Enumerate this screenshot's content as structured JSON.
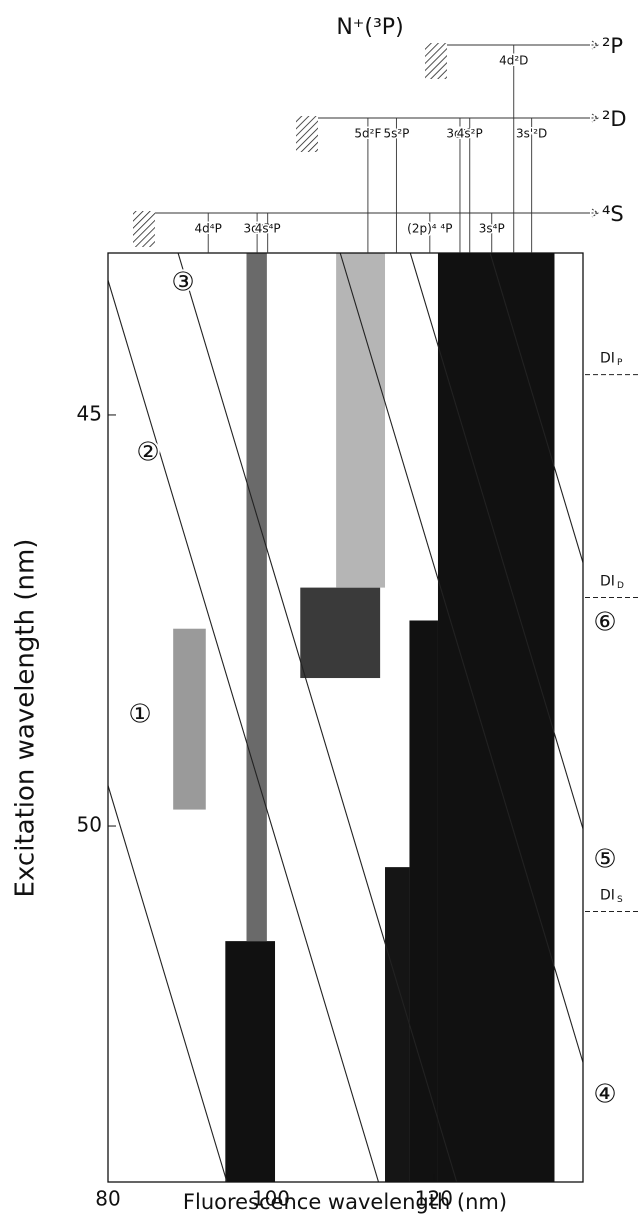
{
  "chart_data": {
    "type": "heatmap",
    "title": "N⁺(³P)",
    "x_label": "Fluorescence wavelength (nm)",
    "y_label": "Excitation wavelength (nm)",
    "xlim": [
      80,
      138.3
    ],
    "ylim": [
      43.03,
      54.33
    ],
    "y_reversed": true,
    "xticks": [
      80,
      100,
      120
    ],
    "yticks": [
      45,
      50
    ],
    "levels": [
      {
        "name": "⁴S",
        "transitions": [
          {
            "label": "4d⁴P",
            "x": 92.3
          },
          {
            "label": "3d⁴P",
            "x": 98.3
          },
          {
            "label": "4s⁴P",
            "x": 99.6
          },
          {
            "label": "(2p)⁴ ⁴P",
            "x": 119.5
          },
          {
            "label": "3s⁴P",
            "x": 127.1
          }
        ]
      },
      {
        "name": "²D",
        "transitions": [
          {
            "label": "5d²F",
            "x": 111.9
          },
          {
            "label": "5s²P",
            "x": 115.4
          },
          {
            "label": "3d²P",
            "x": 123.2
          },
          {
            "label": "4s²P",
            "x": 124.4
          },
          {
            "label": "3s'²D",
            "x": 132.0
          }
        ]
      },
      {
        "name": "²P",
        "transitions": [
          {
            "label": "4d²D",
            "x": 129.8
          }
        ]
      }
    ],
    "regions": [
      {
        "x": [
          120.5,
          134.8
        ],
        "y": [
          43.03,
          54.33
        ],
        "color": "#111111"
      },
      {
        "x": [
          117,
          120.5
        ],
        "y": [
          47.5,
          54.33
        ],
        "color": "#111111"
      },
      {
        "x": [
          114,
          117
        ],
        "y": [
          50.5,
          54.33
        ],
        "color": "#151515"
      },
      {
        "x": [
          94.4,
          100.5
        ],
        "y": [
          51.4,
          54.33
        ],
        "color": "#111111"
      },
      {
        "x": [
          97,
          99.5
        ],
        "y": [
          43.03,
          51.4
        ],
        "color": "#6a6a6a"
      },
      {
        "x": [
          103.6,
          113.4
        ],
        "y": [
          47.1,
          48.2
        ],
        "color": "#3a3a3a"
      },
      {
        "x": [
          108,
          114
        ],
        "y": [
          43.03,
          47.1
        ],
        "color": "#b5b5b5"
      },
      {
        "x": [
          88,
          92
        ],
        "y": [
          47.6,
          49.8
        ],
        "color": "#9a9a9a"
      }
    ],
    "diagonals": [
      {
        "label": "①",
        "x": [
          60.4,
          94.6
        ]
      },
      {
        "label": "②",
        "x": [
          79.0,
          113.2
        ]
      },
      {
        "label": "③",
        "x": [
          88.6,
          122.8
        ]
      },
      {
        "label": "④",
        "x": [
          108.5,
          142.7
        ]
      },
      {
        "label": "⑤",
        "x": [
          117.1,
          151.3
        ]
      },
      {
        "label": "⑥",
        "x": [
          126.9,
          161.1
        ]
      }
    ],
    "thresholds": [
      {
        "label": "DI",
        "sub": "P",
        "value": 44.51
      },
      {
        "label": "DI",
        "sub": "D",
        "value": 47.22
      },
      {
        "label": "DI",
        "sub": "S",
        "value": 51.04
      }
    ]
  }
}
